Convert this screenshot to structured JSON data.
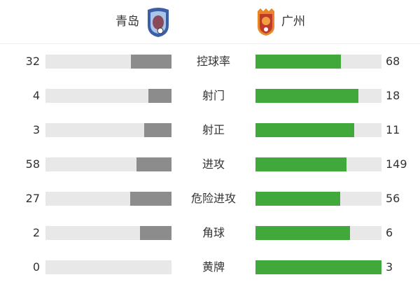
{
  "home": {
    "name": "青岛",
    "color": "#8c8c8c"
  },
  "away": {
    "name": "广州",
    "color": "#41a93b"
  },
  "stats": [
    {
      "label": "控球率",
      "home": 32,
      "away": 68
    },
    {
      "label": "射门",
      "home": 4,
      "away": 18
    },
    {
      "label": "射正",
      "home": 3,
      "away": 11
    },
    {
      "label": "进攻",
      "home": 58,
      "away": 149
    },
    {
      "label": "危险进攻",
      "home": 27,
      "away": 56
    },
    {
      "label": "角球",
      "home": 2,
      "away": 6
    },
    {
      "label": "黄牌",
      "home": 0,
      "away": 3
    }
  ],
  "chart_data": {
    "type": "bar",
    "categories": [
      "控球率",
      "射门",
      "射正",
      "进攻",
      "危险进攻",
      "角球",
      "黄牌"
    ],
    "series": [
      {
        "name": "青岛",
        "values": [
          32,
          4,
          3,
          58,
          27,
          2,
          0
        ]
      },
      {
        "name": "广州",
        "values": [
          68,
          18,
          11,
          149,
          56,
          6,
          3
        ]
      }
    ]
  }
}
